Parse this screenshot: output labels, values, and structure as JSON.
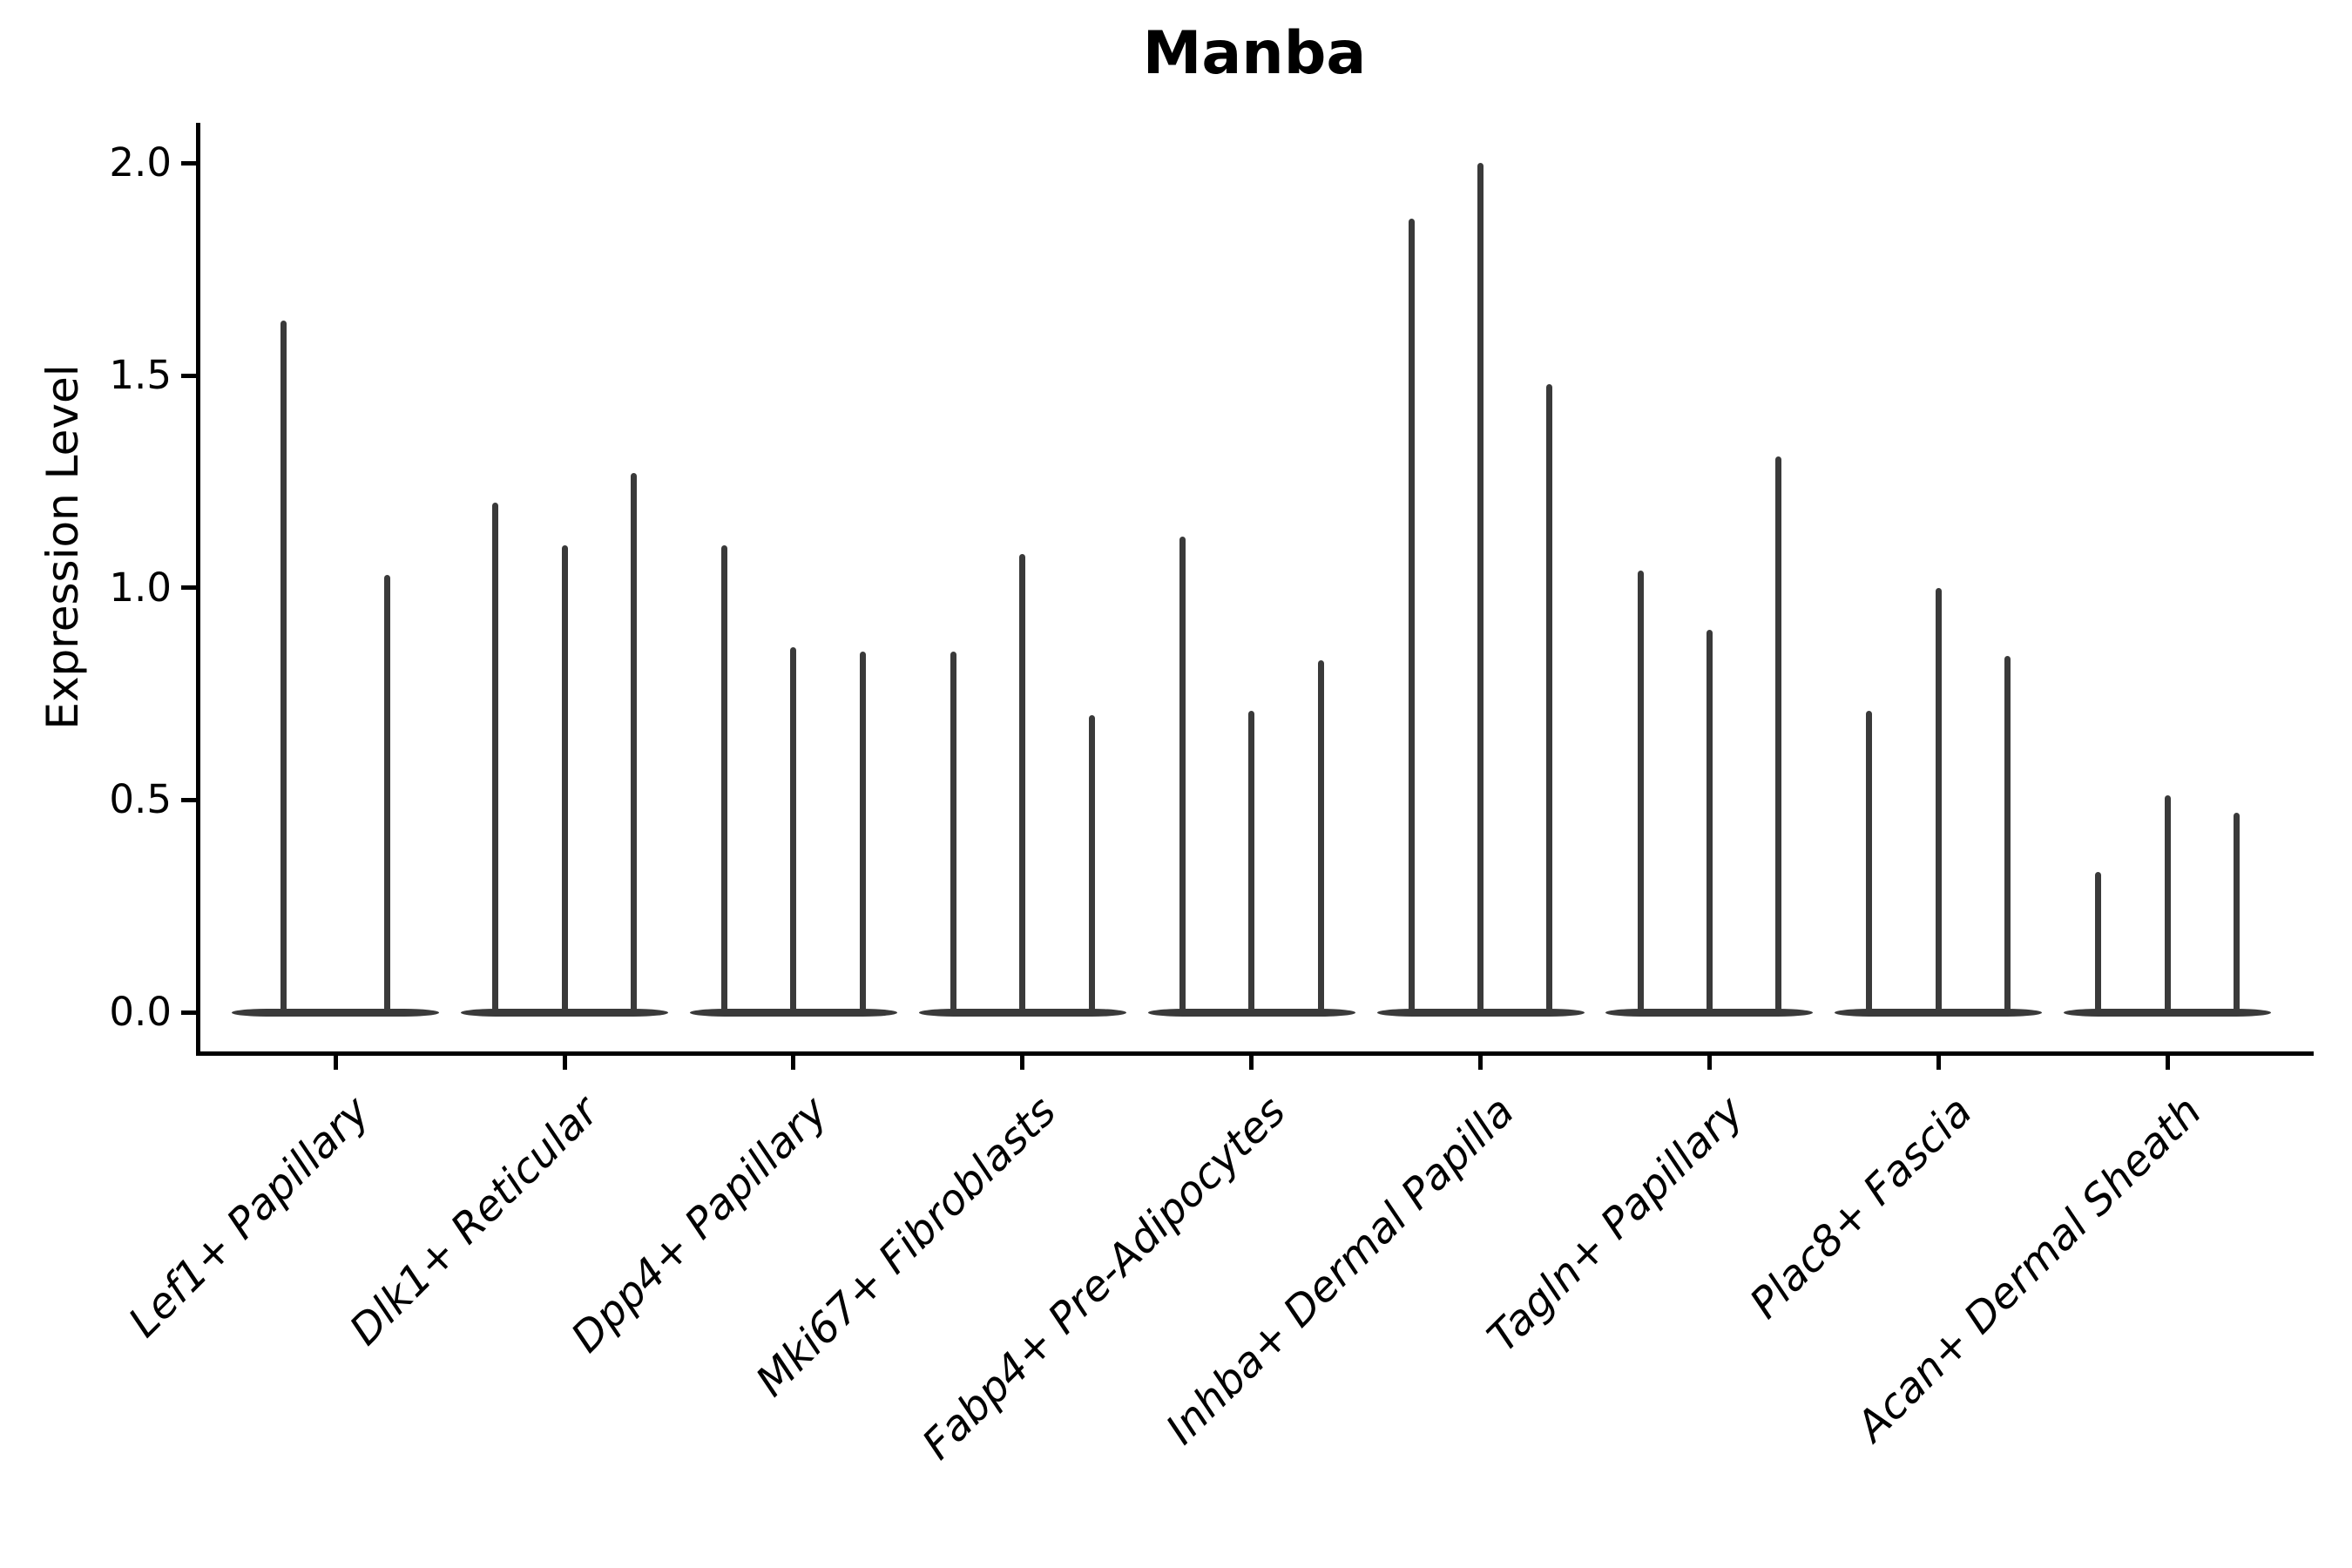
{
  "chart_data": {
    "type": "violin",
    "title": "Manba",
    "ylabel": "Expression Level",
    "xlabel": "",
    "ylim": [
      0,
      2.1
    ],
    "grid": false,
    "legend": "none",
    "ytick_labels": [
      "0.0",
      "0.5",
      "1.0",
      "1.5",
      "2.0"
    ],
    "ytick_values": [
      0.0,
      0.5,
      1.0,
      1.5,
      2.0
    ],
    "categories": [
      "Lef1+ Papillary",
      "Dlk1+ Reticular",
      "Dpp4+ Papillary",
      "Mki67+ Fibroblasts",
      "Fabp4+ Pre-Adipocytes",
      "Inhba+ Dermal Papilla",
      "Tagln+ Papillary",
      "Plac8+ Fascia",
      "Acan+ Dermal Sheath"
    ],
    "violins": [
      {
        "category": "Lef1+ Papillary",
        "violin_max_values": [
          1.63,
          1.03
        ]
      },
      {
        "category": "Dlk1+ Reticular",
        "violin_max_values": [
          1.2,
          1.1,
          1.27
        ]
      },
      {
        "category": "Dpp4+ Papillary",
        "violin_max_values": [
          1.1,
          0.86,
          0.85
        ]
      },
      {
        "category": "Mki67+ Fibroblasts",
        "violin_max_values": [
          0.85,
          1.08,
          0.7
        ]
      },
      {
        "category": "Fabp4+ Pre-Adipocytes",
        "violin_max_values": [
          1.12,
          0.71,
          0.83
        ]
      },
      {
        "category": "Inhba+ Dermal Papilla",
        "violin_max_values": [
          1.87,
          2.0,
          1.48
        ]
      },
      {
        "category": "Tagln+ Papillary",
        "violin_max_values": [
          1.04,
          0.9,
          1.31
        ]
      },
      {
        "category": "Plac8+ Fascia",
        "violin_max_values": [
          0.71,
          1.0,
          0.84
        ]
      },
      {
        "category": "Acan+ Dermal Sheath",
        "violin_max_values": [
          0.33,
          0.51,
          0.47
        ]
      }
    ],
    "violin_color": "#3a3a3a",
    "axis_color": "#000000",
    "violin_baseline_value": 0.0
  }
}
